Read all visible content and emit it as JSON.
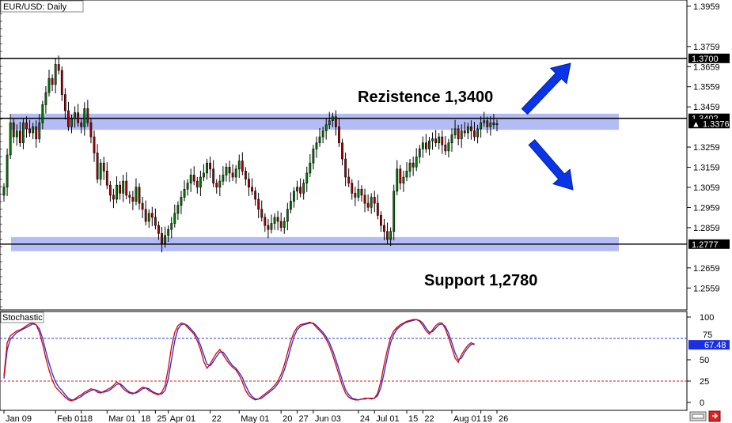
{
  "window": {
    "title": "EUR/USD: Daily",
    "indicator_title": "Stochastic"
  },
  "colors": {
    "bull_candle": "#007f00",
    "bear_candle": "#b00000",
    "zone_fill": "#9aa6f0",
    "arrow": "#0a35e6",
    "stoch_k": "#e00000",
    "stoch_d": "#1b2fe0",
    "stoch_level": "#2b3fe0",
    "stoch_oversold": "#d02020"
  },
  "chart_data": [
    {
      "type": "candlestick",
      "title": "EUR/USD: Daily",
      "ylim": [
        1.245,
        1.399
      ],
      "y_ticks": [
        "1.3959",
        "1.3759",
        "1.3659",
        "1.3559",
        "1.3459",
        "1.3259",
        "1.3159",
        "1.3059",
        "1.2959",
        "1.2859",
        "1.2659",
        "1.2559"
      ],
      "x_labels": [
        "Jan 09",
        "Feb 01",
        "18",
        "Mar 01",
        "18",
        "25",
        "Apr 01",
        "22",
        "May 01",
        "20",
        "27",
        "Jun 03",
        "24",
        "Jul 01",
        "15",
        "22",
        "Aug 01",
        "19",
        "26"
      ],
      "x_label_index": [
        0,
        16,
        24,
        32,
        42,
        47,
        51,
        64,
        73,
        86,
        91,
        96,
        110,
        115,
        125,
        130,
        139,
        148,
        153
      ],
      "horizontal_lines": [
        {
          "value": 1.37,
          "tag": "1.3700"
        },
        {
          "value": 1.3402,
          "tag": "1.3402"
        },
        {
          "value": 1.2777,
          "tag": "1.2777"
        }
      ],
      "current_price": {
        "value": 1.3376,
        "tag": "1.3376"
      },
      "zones": [
        {
          "from": 1.3345,
          "to": 1.3425
        },
        {
          "from": 1.2742,
          "to": 1.2812
        }
      ],
      "annotations": [
        {
          "text": "Rezistence 1,3400",
          "value": 1.3465,
          "direction": "up"
        },
        {
          "text": "Support 1,2780",
          "value": 1.2705,
          "direction": "none"
        }
      ],
      "closes": [
        1.306,
        1.322,
        1.338,
        1.331,
        1.334,
        1.328,
        1.338,
        1.335,
        1.333,
        1.336,
        1.33,
        1.338,
        1.347,
        1.353,
        1.36,
        1.357,
        1.367,
        1.364,
        1.352,
        1.344,
        1.336,
        1.34,
        1.343,
        1.338,
        1.336,
        1.345,
        1.338,
        1.331,
        1.323,
        1.31,
        1.318,
        1.314,
        1.307,
        1.302,
        1.3,
        1.307,
        1.303,
        1.309,
        1.302,
        1.301,
        1.299,
        1.306,
        1.298,
        1.295,
        1.289,
        1.293,
        1.291,
        1.287,
        1.283,
        1.278,
        1.282,
        1.285,
        1.288,
        1.293,
        1.297,
        1.301,
        1.305,
        1.308,
        1.312,
        1.309,
        1.306,
        1.311,
        1.313,
        1.318,
        1.315,
        1.308,
        1.306,
        1.309,
        1.312,
        1.316,
        1.313,
        1.311,
        1.315,
        1.319,
        1.314,
        1.31,
        1.306,
        1.304,
        1.3,
        1.295,
        1.291,
        1.287,
        1.285,
        1.288,
        1.291,
        1.289,
        1.286,
        1.289,
        1.295,
        1.299,
        1.304,
        1.306,
        1.303,
        1.308,
        1.313,
        1.318,
        1.325,
        1.328,
        1.331,
        1.334,
        1.337,
        1.339,
        1.341,
        1.336,
        1.328,
        1.32,
        1.311,
        1.308,
        1.303,
        1.301,
        1.305,
        1.302,
        1.298,
        1.296,
        1.301,
        1.298,
        1.292,
        1.287,
        1.284,
        1.28,
        1.284,
        1.304,
        1.315,
        1.308,
        1.311,
        1.314,
        1.318,
        1.316,
        1.321,
        1.325,
        1.328,
        1.325,
        1.329,
        1.33,
        1.328,
        1.331,
        1.327,
        1.324,
        1.328,
        1.332,
        1.335,
        1.33,
        1.334,
        1.333,
        1.336,
        1.334,
        1.331,
        1.335,
        1.338,
        1.339,
        1.336,
        1.338,
        1.337,
        1.3376
      ],
      "stochastic": {
        "ylim": [
          0,
          100
        ],
        "y_ticks": [
          "100",
          "50",
          "25",
          "0"
        ],
        "levels": [
          {
            "value": 75,
            "tag": "75"
          },
          {
            "value": 25
          }
        ],
        "current": {
          "value": 67.48,
          "tag": "67.48"
        },
        "k": [
          31,
          70,
          78,
          81,
          84,
          85,
          87,
          90,
          92,
          93,
          91,
          82,
          68,
          52,
          38,
          26,
          18,
          14,
          10,
          6,
          3,
          2,
          4,
          7,
          9,
          12,
          14,
          16,
          15,
          12,
          11,
          13,
          15,
          17,
          20,
          24,
          21,
          16,
          13,
          11,
          10,
          12,
          15,
          18,
          17,
          14,
          12,
          10,
          9,
          12,
          20,
          40,
          65,
          82,
          90,
          93,
          92,
          88,
          84,
          80,
          72,
          62,
          48,
          40,
          45,
          52,
          58,
          62,
          56,
          50,
          45,
          41,
          38,
          32,
          24,
          14,
          8,
          5,
          3,
          4,
          7,
          10,
          13,
          16,
          20,
          25,
          33,
          44,
          58,
          72,
          82,
          88,
          91,
          92,
          93,
          94,
          92,
          88,
          84,
          80,
          74,
          66,
          56,
          44,
          32,
          20,
          11,
          6,
          4,
          3,
          3,
          4,
          5,
          5,
          4,
          5,
          11,
          25,
          45,
          62,
          76,
          84,
          88,
          91,
          93,
          95,
          96,
          97,
          97,
          95,
          90,
          84,
          80,
          85,
          90,
          93,
          93,
          86,
          76,
          64,
          52,
          47,
          56,
          62,
          67,
          70,
          67.48
        ],
        "d": [
          28,
          62,
          74,
          78,
          82,
          84,
          86,
          88,
          90,
          92,
          91,
          86,
          75,
          60,
          46,
          34,
          24,
          18,
          14,
          9,
          5,
          3,
          3,
          5,
          7,
          10,
          12,
          14,
          15,
          14,
          12,
          12,
          13,
          15,
          18,
          21,
          22,
          19,
          15,
          12,
          11,
          11,
          13,
          16,
          17,
          16,
          13,
          11,
          10,
          10,
          14,
          28,
          50,
          72,
          86,
          91,
          92,
          90,
          86,
          82,
          76,
          67,
          56,
          45,
          43,
          48,
          54,
          59,
          59,
          54,
          48,
          43,
          40,
          35,
          29,
          20,
          12,
          7,
          4,
          4,
          5,
          8,
          11,
          14,
          17,
          22,
          28,
          38,
          50,
          64,
          77,
          85,
          89,
          91,
          92,
          93,
          93,
          90,
          86,
          82,
          77,
          70,
          61,
          50,
          38,
          26,
          15,
          9,
          5,
          4,
          3,
          4,
          4,
          5,
          5,
          5,
          8,
          18,
          35,
          54,
          70,
          80,
          86,
          89,
          92,
          94,
          95,
          96,
          97,
          96,
          93,
          87,
          82,
          83,
          87,
          91,
          92,
          89,
          81,
          70,
          58,
          50,
          52,
          59,
          64,
          68,
          68.9
        ]
      }
    }
  ]
}
